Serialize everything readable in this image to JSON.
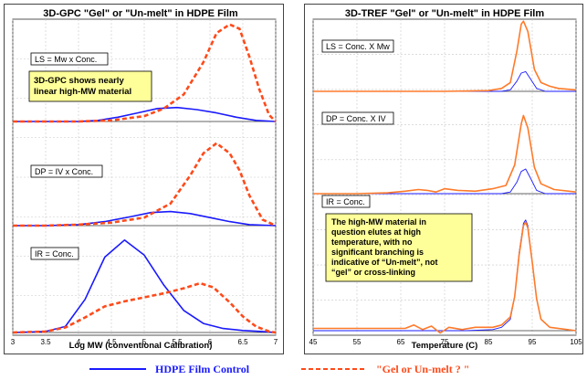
{
  "colors": {
    "control": "#1a1aff",
    "gel": "#ff4a1a",
    "gel_tref": "#ff7a2a",
    "note_bg": "#ffff99",
    "plot_bg": "#ffffff"
  },
  "legend": {
    "control_label": "HDPE Film Control",
    "gel_label": "\"Gel or Un-melt ? \""
  },
  "chart_data": [
    {
      "type": "line",
      "title": "3D-GPC \"Gel\" or \"Un-melt\" in HDPE Film",
      "xlabel": "Log MW (conventional Calibration)",
      "ylabel": "",
      "xlim": [
        3,
        7
      ],
      "xticks": [
        "3",
        "3.5",
        "4",
        "4.5",
        "5",
        "5.5",
        "6",
        "6.5",
        "7"
      ],
      "grid": true,
      "stacked_panels": [
        {
          "label": "LS = Mw x Conc.",
          "ylim": [
            0,
            1
          ],
          "series": [
            {
              "name": "HDPE Film Control",
              "x": [
                3,
                3.5,
                4,
                4.3,
                4.6,
                4.9,
                5.2,
                5.5,
                5.8,
                6.1,
                6.4,
                6.7,
                7
              ],
              "y": [
                0,
                0,
                0,
                0.01,
                0.04,
                0.08,
                0.12,
                0.13,
                0.11,
                0.08,
                0.04,
                0.01,
                0
              ]
            },
            {
              "name": "\"Gel or Un-melt ? \"",
              "x": [
                3,
                3.5,
                4,
                4.5,
                5,
                5.3,
                5.6,
                5.9,
                6.1,
                6.3,
                6.45,
                6.6,
                6.75,
                6.9,
                7
              ],
              "y": [
                0,
                0,
                0,
                0.01,
                0.05,
                0.12,
                0.25,
                0.55,
                0.82,
                0.9,
                0.86,
                0.6,
                0.3,
                0.06,
                0
              ]
            }
          ]
        },
        {
          "label": "DP = IV x Conc.",
          "ylim": [
            0,
            1
          ],
          "series": [
            {
              "name": "HDPE Film Control",
              "x": [
                3,
                3.5,
                4,
                4.4,
                4.8,
                5.1,
                5.4,
                5.7,
                6,
                6.3,
                6.6,
                7
              ],
              "y": [
                0,
                0,
                0.01,
                0.04,
                0.09,
                0.13,
                0.14,
                0.12,
                0.08,
                0.04,
                0.01,
                0
              ]
            },
            {
              "name": "\"Gel or Un-melt ? \"",
              "x": [
                3,
                3.5,
                4,
                4.5,
                5,
                5.4,
                5.7,
                5.9,
                6.1,
                6.3,
                6.45,
                6.6,
                6.8,
                7
              ],
              "y": [
                0,
                0,
                0.01,
                0.03,
                0.08,
                0.22,
                0.5,
                0.72,
                0.82,
                0.72,
                0.55,
                0.3,
                0.06,
                0
              ]
            }
          ]
        },
        {
          "label": "IR = Conc.",
          "ylim": [
            0,
            1
          ],
          "series": [
            {
              "name": "HDPE Film Control",
              "x": [
                3,
                3.5,
                3.8,
                4.1,
                4.4,
                4.7,
                5,
                5.3,
                5.6,
                5.9,
                6.2,
                6.5,
                6.8,
                7
              ],
              "y": [
                0,
                0.01,
                0.06,
                0.33,
                0.75,
                0.92,
                0.77,
                0.47,
                0.22,
                0.09,
                0.04,
                0.02,
                0.01,
                0
              ]
            },
            {
              "name": "\"Gel or Un-melt ? \"",
              "x": [
                3,
                3.5,
                3.8,
                4.1,
                4.4,
                4.7,
                5,
                5.3,
                5.6,
                5.85,
                6.05,
                6.3,
                6.5,
                6.7,
                6.9,
                7
              ],
              "y": [
                0,
                0.01,
                0.05,
                0.15,
                0.26,
                0.31,
                0.35,
                0.39,
                0.44,
                0.49,
                0.45,
                0.3,
                0.16,
                0.06,
                0.01,
                0
              ]
            }
          ]
        }
      ],
      "annotation": "3D-GPC shows nearly linear high-MW material"
    },
    {
      "type": "line",
      "title": "3D-TREF \"Gel\" or \"Un-melt\" in HDPE Film",
      "xlabel": "Temperature (C)",
      "ylabel": "",
      "xlim": [
        45,
        105
      ],
      "xticks": [
        "45",
        "55",
        "65",
        "75",
        "85",
        "95",
        "105"
      ],
      "grid": true,
      "stacked_panels": [
        {
          "label": "LS = Conc. X Mw",
          "ylim": [
            0,
            1
          ],
          "series": [
            {
              "name": "HDPE Film Control",
              "x": [
                45,
                80,
                88,
                90,
                91.5,
                92.5,
                93.5,
                94.5,
                96,
                98,
                105
              ],
              "y": [
                0,
                0,
                0,
                0.02,
                0.14,
                0.25,
                0.27,
                0.18,
                0.04,
                0,
                0
              ]
            },
            {
              "name": "\"Gel or Un-melt ? \"",
              "x": [
                45,
                75,
                85,
                88,
                90,
                91.5,
                92.5,
                93,
                94,
                95.5,
                97,
                99,
                101,
                105
              ],
              "y": [
                0,
                0,
                0.01,
                0.04,
                0.12,
                0.55,
                0.92,
                0.96,
                0.82,
                0.3,
                0.12,
                0.07,
                0.04,
                0.02
              ]
            }
          ]
        },
        {
          "label": "DP = Conc. X IV",
          "ylim": [
            0,
            1
          ],
          "series": [
            {
              "name": "HDPE Film Control",
              "x": [
                45,
                80,
                88,
                90,
                91.5,
                92.5,
                93.5,
                94.5,
                96,
                98,
                105
              ],
              "y": [
                0,
                0,
                0,
                0.02,
                0.14,
                0.27,
                0.3,
                0.2,
                0.04,
                0,
                0
              ]
            },
            {
              "name": "\"Gel or Un-melt ? \"",
              "x": [
                45,
                55,
                62,
                66,
                69,
                71,
                73,
                75,
                78,
                82,
                86,
                89,
                91,
                92.5,
                93,
                94,
                95.5,
                97,
                100,
                105
              ],
              "y": [
                0,
                0,
                0.01,
                0.03,
                0.05,
                0.04,
                0.02,
                0.06,
                0.04,
                0.03,
                0.06,
                0.1,
                0.35,
                0.85,
                0.95,
                0.8,
                0.32,
                0.12,
                0.05,
                0.02
              ]
            }
          ]
        },
        {
          "label": "IR = Conc.",
          "ylim": [
            0,
            1
          ],
          "series": [
            {
              "name": "HDPE Film Control",
              "x": [
                45,
                80,
                86,
                88,
                90,
                91,
                92,
                93,
                93.5,
                94,
                95,
                96,
                97,
                99,
                105
              ],
              "y": [
                0,
                0,
                0.01,
                0.03,
                0.1,
                0.3,
                0.68,
                0.94,
                0.97,
                0.92,
                0.6,
                0.28,
                0.1,
                0.03,
                0
              ]
            },
            {
              "name": "\"Gel or Un-melt ? \"",
              "x": [
                45,
                66,
                68,
                70,
                72,
                74,
                76,
                79,
                82,
                86,
                88,
                90,
                91,
                92,
                93,
                93.5,
                94,
                95,
                96,
                97,
                99,
                105
              ],
              "y": [
                0.02,
                0.02,
                0.05,
                0.01,
                0.04,
                -0.02,
                0.03,
                0.01,
                0.03,
                0.03,
                0.05,
                0.12,
                0.3,
                0.66,
                0.92,
                0.95,
                0.9,
                0.6,
                0.28,
                0.1,
                0.03,
                0
              ]
            }
          ]
        }
      ],
      "annotation": "The high-MW material in question elutes at high temperature, with no significant branching is indicative of “Un-melt”, not “gel” or cross-linking"
    }
  ]
}
